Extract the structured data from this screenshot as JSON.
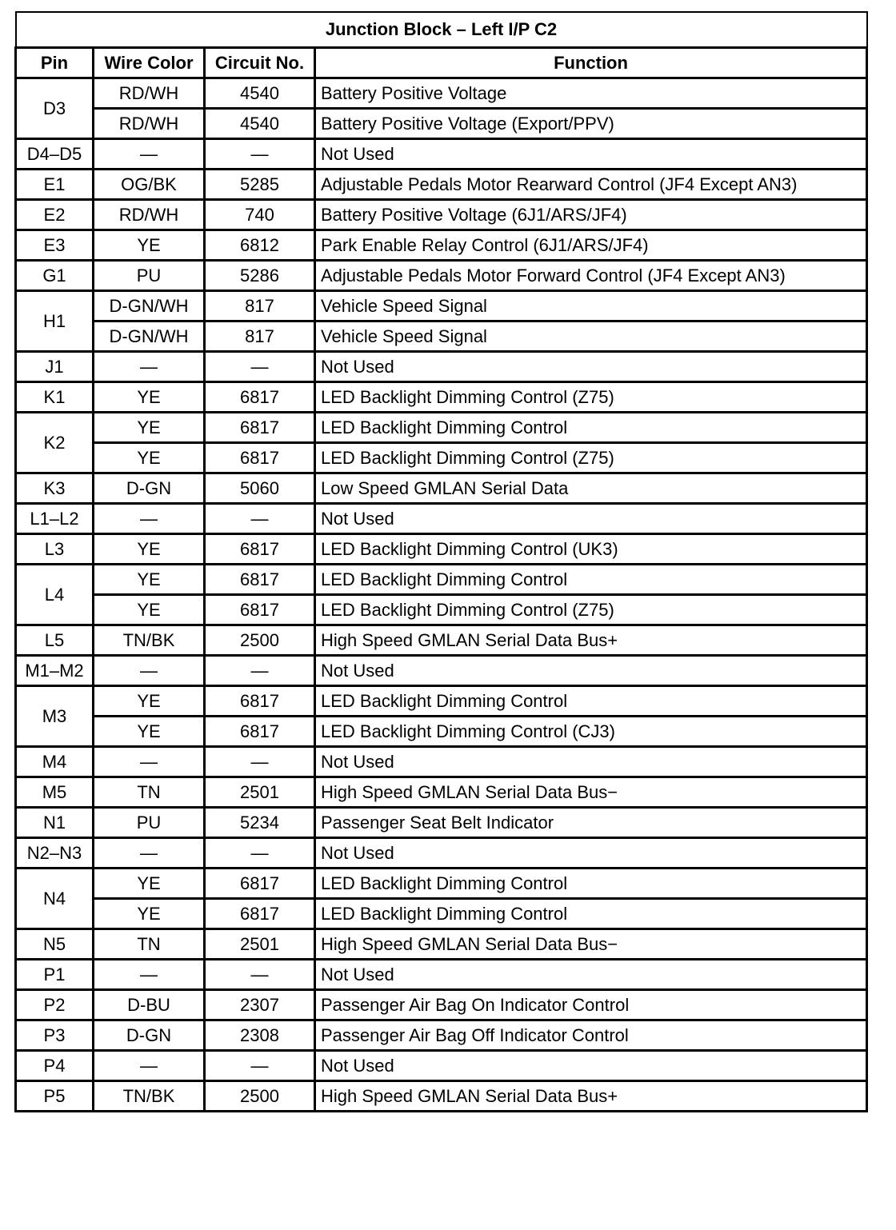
{
  "title": "Junction Block – Left I/P C2",
  "headers": [
    "Pin",
    "Wire Color",
    "Circuit No.",
    "Function"
  ],
  "rows": [
    {
      "pin": "D3",
      "wires": [
        {
          "color": "RD/WH",
          "circuit": "4540",
          "function": "Battery Positive Voltage"
        },
        {
          "color": "RD/WH",
          "circuit": "4540",
          "function": "Battery Positive Voltage (Export/PPV)"
        }
      ]
    },
    {
      "pin": "D4–D5",
      "wires": [
        {
          "color": "—",
          "circuit": "—",
          "function": "Not Used"
        }
      ]
    },
    {
      "pin": "E1",
      "wires": [
        {
          "color": "OG/BK",
          "circuit": "5285",
          "function": "Adjustable Pedals Motor Rearward Control (JF4 Except AN3)"
        }
      ]
    },
    {
      "pin": "E2",
      "wires": [
        {
          "color": "RD/WH",
          "circuit": "740",
          "function": "Battery Positive Voltage (6J1/ARS/JF4)"
        }
      ]
    },
    {
      "pin": "E3",
      "wires": [
        {
          "color": "YE",
          "circuit": "6812",
          "function": "Park Enable Relay Control (6J1/ARS/JF4)"
        }
      ]
    },
    {
      "pin": "G1",
      "wires": [
        {
          "color": "PU",
          "circuit": "5286",
          "function": "Adjustable Pedals Motor Forward Control (JF4 Except AN3)"
        }
      ]
    },
    {
      "pin": "H1",
      "wires": [
        {
          "color": "D-GN/WH",
          "circuit": "817",
          "function": "Vehicle Speed Signal"
        },
        {
          "color": "D-GN/WH",
          "circuit": "817",
          "function": "Vehicle Speed Signal"
        }
      ]
    },
    {
      "pin": "J1",
      "wires": [
        {
          "color": "—",
          "circuit": "—",
          "function": "Not Used"
        }
      ]
    },
    {
      "pin": "K1",
      "wires": [
        {
          "color": "YE",
          "circuit": "6817",
          "function": "LED Backlight Dimming Control (Z75)"
        }
      ]
    },
    {
      "pin": "K2",
      "wires": [
        {
          "color": "YE",
          "circuit": "6817",
          "function": "LED Backlight Dimming Control"
        },
        {
          "color": "YE",
          "circuit": "6817",
          "function": "LED Backlight Dimming Control (Z75)"
        }
      ]
    },
    {
      "pin": "K3",
      "wires": [
        {
          "color": "D-GN",
          "circuit": "5060",
          "function": "Low Speed GMLAN Serial Data"
        }
      ]
    },
    {
      "pin": "L1–L2",
      "wires": [
        {
          "color": "—",
          "circuit": "—",
          "function": "Not Used"
        }
      ]
    },
    {
      "pin": "L3",
      "wires": [
        {
          "color": "YE",
          "circuit": "6817",
          "function": "LED Backlight Dimming Control (UK3)"
        }
      ]
    },
    {
      "pin": "L4",
      "wires": [
        {
          "color": "YE",
          "circuit": "6817",
          "function": "LED Backlight Dimming Control"
        },
        {
          "color": "YE",
          "circuit": "6817",
          "function": "LED Backlight Dimming Control (Z75)"
        }
      ]
    },
    {
      "pin": "L5",
      "wires": [
        {
          "color": "TN/BK",
          "circuit": "2500",
          "function": "High Speed GMLAN Serial Data Bus+"
        }
      ]
    },
    {
      "pin": "M1–M2",
      "wires": [
        {
          "color": "—",
          "circuit": "—",
          "function": "Not Used"
        }
      ]
    },
    {
      "pin": "M3",
      "wires": [
        {
          "color": "YE",
          "circuit": "6817",
          "function": "LED Backlight Dimming Control"
        },
        {
          "color": "YE",
          "circuit": "6817",
          "function": "LED Backlight Dimming Control (CJ3)"
        }
      ]
    },
    {
      "pin": "M4",
      "wires": [
        {
          "color": "—",
          "circuit": "—",
          "function": "Not Used"
        }
      ]
    },
    {
      "pin": "M5",
      "wires": [
        {
          "color": "TN",
          "circuit": "2501",
          "function": "High Speed GMLAN Serial Data Bus−"
        }
      ]
    },
    {
      "pin": "N1",
      "wires": [
        {
          "color": "PU",
          "circuit": "5234",
          "function": "Passenger Seat Belt Indicator"
        }
      ]
    },
    {
      "pin": "N2–N3",
      "wires": [
        {
          "color": "—",
          "circuit": "—",
          "function": "Not Used"
        }
      ]
    },
    {
      "pin": "N4",
      "wires": [
        {
          "color": "YE",
          "circuit": "6817",
          "function": "LED Backlight Dimming Control"
        },
        {
          "color": "YE",
          "circuit": "6817",
          "function": "LED Backlight Dimming Control"
        }
      ]
    },
    {
      "pin": "N5",
      "wires": [
        {
          "color": "TN",
          "circuit": "2501",
          "function": "High Speed GMLAN Serial Data Bus−"
        }
      ]
    },
    {
      "pin": "P1",
      "wires": [
        {
          "color": "—",
          "circuit": "—",
          "function": "Not Used"
        }
      ]
    },
    {
      "pin": "P2",
      "wires": [
        {
          "color": "D-BU",
          "circuit": "2307",
          "function": "Passenger Air Bag On Indicator Control"
        }
      ]
    },
    {
      "pin": "P3",
      "wires": [
        {
          "color": "D-GN",
          "circuit": "2308",
          "function": "Passenger Air Bag Off Indicator Control"
        }
      ]
    },
    {
      "pin": "P4",
      "wires": [
        {
          "color": "—",
          "circuit": "—",
          "function": "Not Used"
        }
      ]
    },
    {
      "pin": "P5",
      "wires": [
        {
          "color": "TN/BK",
          "circuit": "2500",
          "function": "High Speed GMLAN Serial Data Bus+"
        }
      ]
    }
  ]
}
